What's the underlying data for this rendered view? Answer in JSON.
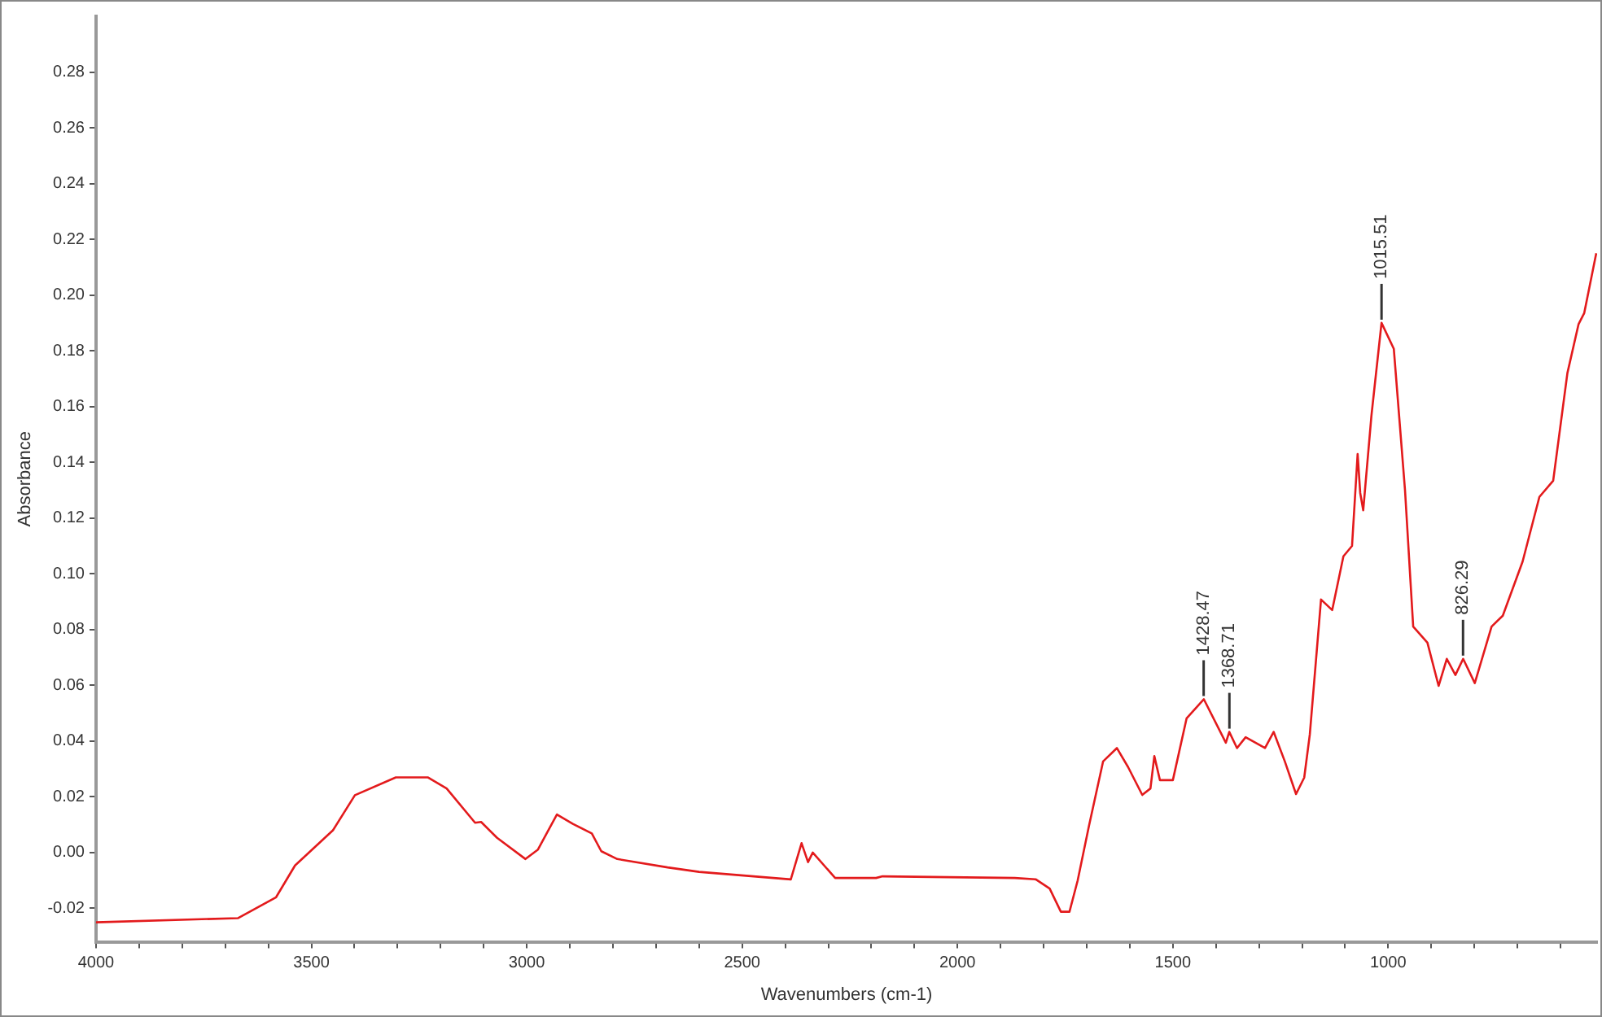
{
  "chart_data": {
    "type": "line",
    "xlabel": "Wavenumbers (cm-1)",
    "ylabel": "Absorbance",
    "xlim": [
      4000,
      515
    ],
    "ylim": [
      -0.032,
      0.3
    ],
    "xticks": [
      4000,
      {
        "value": 3900,
        "label": null
      },
      {
        "value": 3800,
        "label": null
      },
      {
        "value": 3700,
        "label": null
      },
      {
        "value": 3600,
        "label": null
      },
      3500,
      {
        "value": 3400,
        "label": null
      },
      {
        "value": 3300,
        "label": null
      },
      {
        "value": 3200,
        "label": null
      },
      {
        "value": 3100,
        "label": null
      },
      3000,
      {
        "value": 2900,
        "label": null
      },
      {
        "value": 2800,
        "label": null
      },
      {
        "value": 2700,
        "label": null
      },
      {
        "value": 2600,
        "label": null
      },
      2500,
      {
        "value": 2400,
        "label": null
      },
      {
        "value": 2300,
        "label": null
      },
      {
        "value": 2200,
        "label": null
      },
      {
        "value": 2100,
        "label": null
      },
      2000,
      {
        "value": 1900,
        "label": null
      },
      {
        "value": 1800,
        "label": null
      },
      {
        "value": 1700,
        "label": null
      },
      {
        "value": 1600,
        "label": null
      },
      1500,
      {
        "value": 1400,
        "label": null
      },
      {
        "value": 1300,
        "label": null
      },
      {
        "value": 1200,
        "label": null
      },
      {
        "value": 1100,
        "label": null
      },
      1000,
      {
        "value": 900,
        "label": null
      },
      {
        "value": 800,
        "label": null
      },
      {
        "value": 700,
        "label": null
      },
      {
        "value": 600,
        "label": null
      }
    ],
    "yticks": [
      {
        "value": -0.02,
        "label": "-0.02"
      },
      {
        "value": 0,
        "label": "0.00"
      },
      {
        "value": 0.02,
        "label": "0.02"
      },
      {
        "value": 0.04,
        "label": "0.04"
      },
      {
        "value": 0.06,
        "label": "0.06"
      },
      {
        "value": 0.08,
        "label": "0.08"
      },
      {
        "value": 0.1,
        "label": "0.10"
      },
      {
        "value": 0.12,
        "label": "0.12"
      },
      {
        "value": 0.14,
        "label": "0.14"
      },
      {
        "value": 0.16,
        "label": "0.16"
      },
      {
        "value": 0.18,
        "label": "0.18"
      },
      {
        "value": 0.2,
        "label": "0.20"
      },
      {
        "value": 0.22,
        "label": "0.22"
      },
      {
        "value": 0.24,
        "label": "0.24"
      },
      {
        "value": 0.26,
        "label": "0.26"
      },
      {
        "value": 0.28,
        "label": "0.28"
      }
    ],
    "grid": false,
    "legend": false,
    "marker": "none",
    "line_style": "solid",
    "series": [
      {
        "color": "#e31a1c",
        "x": [
          4000,
          3670,
          3582,
          3538,
          3450,
          3399,
          3304,
          3230,
          3186,
          3120,
          3106,
          3069,
          3003,
          2974,
          2930,
          2893,
          2849,
          2827,
          2790,
          2673,
          2600,
          2387,
          2362,
          2347,
          2336,
          2284,
          2189,
          2174,
          1867,
          1818,
          1786,
          1760,
          1740,
          1721,
          1695,
          1662,
          1630,
          1604,
          1571,
          1552,
          1543,
          1530,
          1500,
          1468,
          1428,
          1377,
          1369,
          1351,
          1331,
          1286,
          1266,
          1240,
          1214,
          1195,
          1182,
          1156,
          1130,
          1104,
          1084,
          1071,
          1065,
          1058,
          1039,
          1015.5,
          987,
          961,
          942,
          909,
          883,
          864,
          844,
          826,
          799,
          760,
          734,
          688,
          649,
          617,
          584,
          558,
          545,
          517
        ],
        "values": [
          -0.025,
          -0.0235,
          -0.016,
          -0.0046,
          0.008,
          0.0206,
          0.027,
          0.027,
          0.023,
          0.0107,
          0.011,
          0.0053,
          -0.0023,
          0.0011,
          0.0137,
          0.0103,
          0.0069,
          0.0005,
          -0.0023,
          -0.0053,
          -0.0069,
          -0.0096,
          0.0034,
          -0.0034,
          0,
          -0.0091,
          -0.0091,
          -0.0085,
          -0.0091,
          -0.0096,
          -0.0129,
          -0.0212,
          -0.0212,
          -0.01,
          0.0094,
          0.0327,
          0.0375,
          0.0307,
          0.0207,
          0.023,
          0.0346,
          0.026,
          0.026,
          0.0482,
          0.055,
          0.0394,
          0.0433,
          0.0375,
          0.0414,
          0.0375,
          0.0433,
          0.0327,
          0.021,
          0.0269,
          0.0424,
          0.0908,
          0.087,
          0.1063,
          0.11,
          0.143,
          0.129,
          0.1228,
          0.1567,
          0.19,
          0.1807,
          0.13,
          0.0811,
          0.0753,
          0.0598,
          0.0695,
          0.0637,
          0.0695,
          0.0608,
          0.0811,
          0.085,
          0.1044,
          0.1276,
          0.1334,
          0.172,
          0.1896,
          0.1935,
          0.215
        ]
      }
    ],
    "annotations": [
      {
        "text": "1428.47",
        "x": 1428.47,
        "y": 0.055
      },
      {
        "text": "1368.71",
        "x": 1368.71,
        "y": 0.0433
      },
      {
        "text": "1015.51",
        "x": 1015.51,
        "y": 0.19
      },
      {
        "text": "826.29",
        "x": 826.29,
        "y": 0.0695
      }
    ]
  }
}
